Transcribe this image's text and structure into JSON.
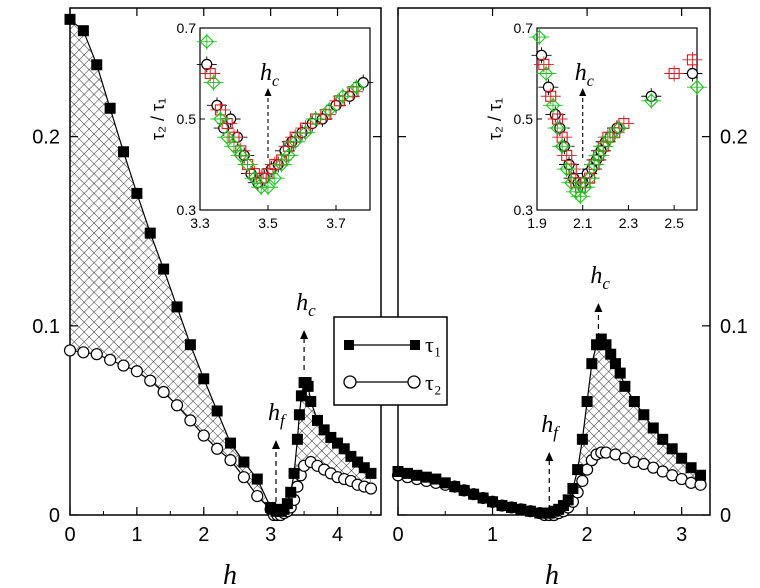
{
  "figure": {
    "x_axis_label": "h",
    "y_ticks": [
      "0",
      "0.1",
      "0.2"
    ],
    "legend": {
      "series1": "τ₁",
      "series2": "τ₂"
    }
  },
  "chart_data": [
    {
      "type": "scatter",
      "panel": "left main",
      "xlabel": "h",
      "xlim": [
        0,
        4.65
      ],
      "ylim": [
        0,
        0.268
      ],
      "x_ticks": [
        "0",
        "1",
        "2",
        "3",
        "4"
      ],
      "y_ticks": [
        "0",
        "0.1",
        "0.2"
      ],
      "annotations": [
        {
          "text": "h",
          "sub": "c",
          "x": 3.5
        },
        {
          "text": "h",
          "sub": "f",
          "x": 3.08
        }
      ],
      "series": [
        {
          "name": "τ₁",
          "marker": "filled-square",
          "x": [
            0,
            0.2,
            0.4,
            0.6,
            0.8,
            1.0,
            1.2,
            1.4,
            1.6,
            1.8,
            2.0,
            2.2,
            2.4,
            2.6,
            2.8,
            3.0,
            3.04,
            3.08,
            3.12,
            3.16,
            3.2,
            3.25,
            3.3,
            3.35,
            3.4,
            3.43,
            3.46,
            3.5,
            3.53,
            3.56,
            3.6,
            3.7,
            3.8,
            3.9,
            4.0,
            4.1,
            4.2,
            4.3,
            4.4,
            4.5
          ],
          "y": [
            0.262,
            0.256,
            0.238,
            0.215,
            0.192,
            0.17,
            0.149,
            0.13,
            0.11,
            0.09,
            0.072,
            0.055,
            0.038,
            0.028,
            0.019,
            0.004,
            0.003,
            0.002,
            0.002,
            0.002,
            0.003,
            0.006,
            0.012,
            0.022,
            0.04,
            0.053,
            0.063,
            0.07,
            0.07,
            0.068,
            0.06,
            0.05,
            0.045,
            0.041,
            0.038,
            0.035,
            0.031,
            0.028,
            0.025,
            0.022
          ]
        },
        {
          "name": "τ₂",
          "marker": "open-circle",
          "x": [
            0,
            0.2,
            0.4,
            0.6,
            0.8,
            1.0,
            1.2,
            1.4,
            1.6,
            1.8,
            2.0,
            2.2,
            2.4,
            2.6,
            2.8,
            3.0,
            3.05,
            3.1,
            3.15,
            3.2,
            3.25,
            3.3,
            3.35,
            3.4,
            3.45,
            3.5,
            3.6,
            3.7,
            3.8,
            3.9,
            4.0,
            4.1,
            4.2,
            4.3,
            4.4,
            4.5
          ],
          "y": [
            0.087,
            0.086,
            0.085,
            0.082,
            0.079,
            0.076,
            0.071,
            0.065,
            0.058,
            0.05,
            0.042,
            0.035,
            0.029,
            0.02,
            0.01,
            0.003,
            0.0,
            0.0,
            0.0,
            0.001,
            0.002,
            0.004,
            0.008,
            0.015,
            0.021,
            0.026,
            0.028,
            0.026,
            0.024,
            0.022,
            0.02,
            0.019,
            0.018,
            0.016,
            0.015,
            0.014
          ]
        }
      ]
    },
    {
      "type": "scatter",
      "panel": "right main",
      "xlabel": "h",
      "xlim": [
        0,
        3.3
      ],
      "ylim": [
        0,
        0.268
      ],
      "x_ticks": [
        "0",
        "1",
        "2",
        "3"
      ],
      "y_ticks": [
        "0",
        "0.1",
        "0.2"
      ],
      "annotations": [
        {
          "text": "h",
          "sub": "c",
          "x": 2.12
        },
        {
          "text": "h",
          "sub": "f",
          "x": 1.6
        }
      ],
      "series": [
        {
          "name": "τ₁",
          "marker": "filled-square",
          "x": [
            0,
            0.1,
            0.2,
            0.3,
            0.4,
            0.5,
            0.6,
            0.7,
            0.8,
            0.9,
            1.0,
            1.1,
            1.2,
            1.3,
            1.4,
            1.5,
            1.55,
            1.6,
            1.65,
            1.7,
            1.75,
            1.8,
            1.85,
            1.9,
            1.95,
            2.0,
            2.05,
            2.1,
            2.15,
            2.2,
            2.25,
            2.3,
            2.35,
            2.4,
            2.5,
            2.6,
            2.7,
            2.8,
            2.9,
            3.0,
            3.1,
            3.2
          ],
          "y": [
            0.023,
            0.022,
            0.021,
            0.02,
            0.019,
            0.017,
            0.015,
            0.013,
            0.011,
            0.009,
            0.007,
            0.005,
            0.004,
            0.003,
            0.002,
            0.001,
            0.001,
            0.001,
            0.002,
            0.003,
            0.005,
            0.008,
            0.014,
            0.024,
            0.04,
            0.06,
            0.08,
            0.09,
            0.093,
            0.09,
            0.085,
            0.08,
            0.075,
            0.068,
            0.06,
            0.053,
            0.046,
            0.04,
            0.035,
            0.03,
            0.025,
            0.021
          ]
        },
        {
          "name": "τ₂",
          "marker": "open-circle",
          "x": [
            0,
            0.1,
            0.2,
            0.3,
            0.4,
            0.5,
            0.6,
            0.7,
            0.8,
            0.9,
            1.0,
            1.1,
            1.2,
            1.3,
            1.4,
            1.5,
            1.55,
            1.6,
            1.65,
            1.7,
            1.75,
            1.8,
            1.85,
            1.9,
            1.95,
            2.0,
            2.05,
            2.1,
            2.15,
            2.2,
            2.3,
            2.4,
            2.5,
            2.6,
            2.7,
            2.8,
            2.9,
            3.0,
            3.1,
            3.2
          ],
          "y": [
            0.021,
            0.02,
            0.019,
            0.018,
            0.017,
            0.016,
            0.015,
            0.013,
            0.011,
            0.009,
            0.007,
            0.005,
            0.004,
            0.003,
            0.002,
            0.001,
            0.0,
            0.0,
            0.0,
            0.001,
            0.002,
            0.004,
            0.007,
            0.012,
            0.018,
            0.024,
            0.029,
            0.032,
            0.033,
            0.033,
            0.032,
            0.03,
            0.028,
            0.027,
            0.025,
            0.023,
            0.021,
            0.019,
            0.017,
            0.016
          ]
        }
      ]
    },
    {
      "type": "scatter",
      "panel": "left inset",
      "ylabel": "τ₂ / τ₁",
      "xlim": [
        3.3,
        3.8
      ],
      "ylim": [
        0.3,
        0.7
      ],
      "x_ticks": [
        "3.3",
        "3.5",
        "3.7"
      ],
      "y_ticks": [
        "0.3",
        "0.5",
        "0.7"
      ],
      "annotations": [
        {
          "text": "h",
          "sub": "c",
          "x": 3.5
        }
      ],
      "series": [
        {
          "name": "",
          "marker": "open-circle",
          "color": "#000000",
          "x": [
            3.32,
            3.35,
            3.37,
            3.39,
            3.41,
            3.43,
            3.45,
            3.47,
            3.49,
            3.51,
            3.53,
            3.55,
            3.57,
            3.6,
            3.63,
            3.66,
            3.7,
            3.74,
            3.78
          ],
          "y": [
            0.62,
            0.53,
            0.48,
            0.5,
            0.46,
            0.42,
            0.38,
            0.36,
            0.37,
            0.39,
            0.4,
            0.43,
            0.45,
            0.47,
            0.49,
            0.5,
            0.53,
            0.55,
            0.58
          ]
        },
        {
          "name": "",
          "marker": "open-square",
          "color": "#d42020",
          "x": [
            3.33,
            3.36,
            3.38,
            3.4,
            3.42,
            3.44,
            3.46,
            3.48,
            3.5,
            3.52,
            3.54,
            3.56,
            3.58,
            3.61,
            3.64,
            3.67,
            3.71,
            3.75
          ],
          "y": [
            0.6,
            0.52,
            0.49,
            0.46,
            0.43,
            0.4,
            0.38,
            0.37,
            0.38,
            0.4,
            0.41,
            0.44,
            0.46,
            0.48,
            0.5,
            0.51,
            0.54,
            0.56
          ]
        },
        {
          "name": "",
          "marker": "open-diamond",
          "color": "#22c022",
          "x": [
            3.32,
            3.34,
            3.36,
            3.38,
            3.4,
            3.42,
            3.44,
            3.46,
            3.48,
            3.5,
            3.52,
            3.54,
            3.56,
            3.58,
            3.61,
            3.64,
            3.68,
            3.72,
            3.76
          ],
          "y": [
            0.67,
            0.58,
            0.5,
            0.46,
            0.44,
            0.42,
            0.4,
            0.37,
            0.35,
            0.35,
            0.37,
            0.4,
            0.42,
            0.45,
            0.47,
            0.5,
            0.52,
            0.55,
            0.57
          ]
        }
      ]
    },
    {
      "type": "scatter",
      "panel": "right inset",
      "ylabel": "τ₂ / τ₁",
      "xlim": [
        1.9,
        2.6
      ],
      "ylim": [
        0.3,
        0.7
      ],
      "x_ticks": [
        "1.9",
        "2.1",
        "2.3",
        "2.5"
      ],
      "y_ticks": [
        "0.3",
        "0.5",
        "0.7"
      ],
      "annotations": [
        {
          "text": "h",
          "sub": "c",
          "x": 2.1
        }
      ],
      "series": [
        {
          "name": "",
          "marker": "open-circle",
          "color": "#000000",
          "x": [
            1.92,
            1.95,
            1.98,
            2.0,
            2.02,
            2.04,
            2.06,
            2.08,
            2.1,
            2.12,
            2.14,
            2.16,
            2.18,
            2.2,
            2.22,
            2.25,
            2.4,
            2.58
          ],
          "y": [
            0.64,
            0.57,
            0.51,
            0.48,
            0.44,
            0.4,
            0.37,
            0.36,
            0.36,
            0.38,
            0.39,
            0.41,
            0.43,
            0.45,
            0.46,
            0.48,
            0.55,
            0.6
          ]
        },
        {
          "name": "",
          "marker": "open-square",
          "color": "#d42020",
          "x": [
            1.93,
            1.96,
            1.99,
            2.01,
            2.03,
            2.05,
            2.07,
            2.09,
            2.11,
            2.13,
            2.15,
            2.17,
            2.19,
            2.21,
            2.24,
            2.28,
            2.5,
            2.58
          ],
          "y": [
            0.62,
            0.55,
            0.5,
            0.46,
            0.42,
            0.39,
            0.36,
            0.35,
            0.36,
            0.37,
            0.4,
            0.42,
            0.44,
            0.46,
            0.47,
            0.49,
            0.6,
            0.63
          ]
        },
        {
          "name": "",
          "marker": "open-diamond",
          "color": "#22c022",
          "x": [
            1.91,
            1.94,
            1.97,
            1.99,
            2.01,
            2.03,
            2.05,
            2.07,
            2.09,
            2.11,
            2.13,
            2.15,
            2.17,
            2.19,
            2.22,
            2.26,
            2.4,
            2.6
          ],
          "y": [
            0.68,
            0.6,
            0.53,
            0.48,
            0.44,
            0.39,
            0.36,
            0.34,
            0.33,
            0.35,
            0.37,
            0.4,
            0.42,
            0.44,
            0.46,
            0.48,
            0.54,
            0.57
          ]
        }
      ]
    }
  ]
}
